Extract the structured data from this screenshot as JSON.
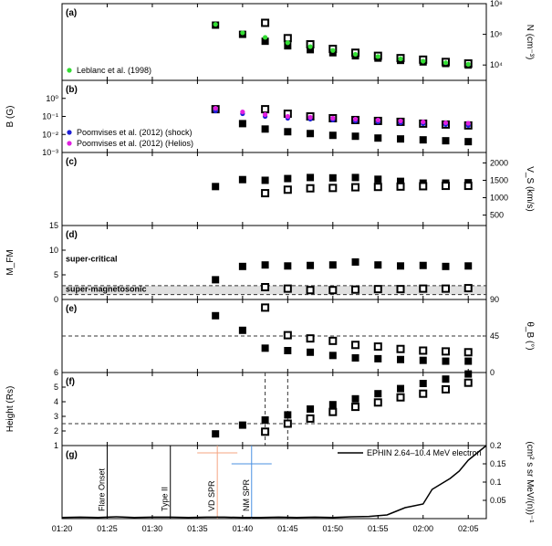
{
  "chart_data": {
    "type": "scatter",
    "x_axis": {
      "ticks": [
        "01:20",
        "01:25",
        "01:30",
        "01:35",
        "01:40",
        "01:45",
        "01:50",
        "01:55",
        "02:00",
        "02:05"
      ],
      "tick_minutes": [
        0,
        5,
        10,
        15,
        20,
        25,
        30,
        35,
        40,
        45
      ],
      "xlim": [
        0,
        47
      ]
    },
    "panels": [
      {
        "label": "(a)",
        "ylabel_right": "N (cm⁻³)",
        "scale": "log",
        "ylim_log": [
          3,
          8
        ],
        "right_ticks": [
          {
            "v": 4,
            "t": "10⁴"
          },
          {
            "v": 6,
            "t": "10⁶"
          },
          {
            "v": 8,
            "t": "10⁸"
          }
        ],
        "legend": [
          "Leblanc et al. (1998)"
        ],
        "series": [
          {
            "name": "filled",
            "style": "filled",
            "x": [
              17,
              20,
              22.5,
              25,
              27.5,
              30,
              32.5,
              35,
              37.5,
              40,
              42.5,
              45
            ],
            "y": [
              6.6,
              6.0,
              5.55,
              5.25,
              5.0,
              4.8,
              4.6,
              4.45,
              4.3,
              4.2,
              4.1,
              4.0
            ]
          },
          {
            "name": "open",
            "style": "open",
            "x": [
              22.5,
              25,
              27.5,
              30,
              32.5,
              35,
              37.5,
              40,
              42.5,
              45
            ],
            "y": [
              6.75,
              5.75,
              5.35,
              5.05,
              4.8,
              4.6,
              4.45,
              4.35,
              4.2,
              4.1
            ]
          },
          {
            "name": "Leblanc et al. (1998)",
            "style": "green",
            "x": [
              17,
              20,
              22.5,
              25,
              27.5,
              30,
              32.5,
              35,
              37.5,
              40,
              42.5,
              45
            ],
            "y": [
              6.65,
              6.1,
              5.8,
              5.45,
              5.2,
              4.95,
              4.7,
              4.55,
              4.4,
              4.25,
              4.15,
              4.05
            ]
          }
        ]
      },
      {
        "label": "(b)",
        "ylabel_left": "B (G)",
        "scale": "log",
        "ylim_log": [
          -3,
          1
        ],
        "left_ticks": [
          {
            "v": 0,
            "t": "10⁰"
          },
          {
            "v": -1,
            "t": "10⁻¹"
          },
          {
            "v": -2,
            "t": "10⁻²"
          },
          {
            "v": -3,
            "t": "10⁻³"
          }
        ],
        "legend": [
          "Poomvises et al. (2012) (shock)",
          "Poomvises et al. (2012) (Helios)"
        ],
        "series": [
          {
            "name": "filled",
            "style": "filled",
            "x": [
              17,
              20,
              22.5,
              25,
              27.5,
              30,
              32.5,
              35,
              37.5,
              40,
              42.5,
              45
            ],
            "y": [
              -0.6,
              -1.4,
              -1.7,
              -1.85,
              -1.95,
              -2.05,
              -2.1,
              -2.2,
              -2.25,
              -2.3,
              -2.35,
              -2.4
            ]
          },
          {
            "name": "open",
            "style": "open",
            "x": [
              17,
              22.5,
              25,
              27.5,
              30,
              32.5,
              35,
              37.5,
              40,
              42.5,
              45
            ],
            "y": [
              -0.6,
              -0.6,
              -0.85,
              -1.0,
              -1.1,
              -1.2,
              -1.25,
              -1.3,
              -1.4,
              -1.45,
              -1.5
            ]
          },
          {
            "name": "Poomvises et al. (2012) (shock)",
            "style": "blue",
            "x": [
              17,
              20,
              22.5,
              25,
              27.5,
              30,
              32.5,
              35,
              37.5,
              40,
              42.5,
              45
            ],
            "y": [
              -0.7,
              -0.85,
              -1.0,
              -1.1,
              -1.15,
              -1.2,
              -1.25,
              -1.3,
              -1.35,
              -1.4,
              -1.45,
              -1.5
            ]
          },
          {
            "name": "Poomvises et al. (2012) (Helios)",
            "style": "magenta",
            "x": [
              17,
              20,
              22.5,
              25,
              27.5,
              30,
              32.5,
              35,
              37.5,
              40,
              42.5,
              45
            ],
            "y": [
              -0.55,
              -0.75,
              -0.9,
              -1.0,
              -1.05,
              -1.1,
              -1.15,
              -1.2,
              -1.25,
              -1.3,
              -1.35,
              -1.38
            ]
          }
        ]
      },
      {
        "label": "(c)",
        "ylabel_right": "V_S (km/s)",
        "scale": "linear",
        "ylim": [
          200,
          2300
        ],
        "right_ticks": [
          {
            "v": 500,
            "t": "500"
          },
          {
            "v": 1000,
            "t": "1000"
          },
          {
            "v": 1500,
            "t": "1500"
          },
          {
            "v": 2000,
            "t": "2000"
          }
        ],
        "series": [
          {
            "name": "filled",
            "style": "filled",
            "x": [
              17,
              20,
              22.5,
              25,
              27.5,
              30,
              32.5,
              35,
              37.5,
              40,
              42.5,
              45
            ],
            "y": [
              1320,
              1520,
              1500,
              1550,
              1580,
              1570,
              1580,
              1530,
              1470,
              1420,
              1420,
              1430
            ]
          },
          {
            "name": "open",
            "style": "open",
            "x": [
              22.5,
              25,
              27.5,
              30,
              32.5,
              35,
              37.5,
              40,
              42.5,
              45
            ],
            "y": [
              1130,
              1230,
              1270,
              1280,
              1300,
              1310,
              1320,
              1330,
              1340,
              1340
            ]
          }
        ]
      },
      {
        "label": "(d)",
        "ylabel_left": "M_FM",
        "scale": "linear",
        "ylim": [
          0,
          15
        ],
        "left_ticks": [
          {
            "v": 0,
            "t": "0"
          },
          {
            "v": 5,
            "t": "5"
          },
          {
            "v": 10,
            "t": "10"
          },
          {
            "v": 15,
            "t": "15"
          }
        ],
        "annotations": [
          "super-critical",
          "super-magnetosonic"
        ],
        "reference_lines": [
          1,
          2.8
        ],
        "series": [
          {
            "name": "filled",
            "style": "filled",
            "x": [
              17,
              20,
              22.5,
              25,
              27.5,
              30,
              32.5,
              35,
              37.5,
              40,
              42.5,
              45
            ],
            "y": [
              4.0,
              6.7,
              7.0,
              6.8,
              6.9,
              7.0,
              7.6,
              7.0,
              6.8,
              6.9,
              6.7,
              6.8
            ]
          },
          {
            "name": "open",
            "style": "open",
            "x": [
              22.5,
              25,
              27.5,
              30,
              32.5,
              35,
              37.5,
              40,
              42.5,
              45
            ],
            "y": [
              2.5,
              2.2,
              1.9,
              1.9,
              2.0,
              2.1,
              2.1,
              2.2,
              2.2,
              2.3
            ]
          }
        ]
      },
      {
        "label": "(e)",
        "ylabel_right": "θ_B (°)",
        "scale": "linear",
        "ylim": [
          0,
          90
        ],
        "right_ticks": [
          {
            "v": 0,
            "t": "0"
          },
          {
            "v": 45,
            "t": "45"
          },
          {
            "v": 90,
            "t": "90"
          }
        ],
        "reference_lines": [
          45
        ],
        "series": [
          {
            "name": "filled",
            "style": "filled",
            "x": [
              17,
              20,
              22.5,
              25,
              27.5,
              30,
              32.5,
              35,
              37.5,
              40,
              42.5,
              45
            ],
            "y": [
              70,
              52,
              30,
              27,
              25,
              21,
              18,
              17,
              16,
              15,
              14,
              14
            ]
          },
          {
            "name": "open",
            "style": "open",
            "x": [
              22.5,
              25,
              27.5,
              30,
              32.5,
              35,
              37.5,
              40,
              42.5,
              45
            ],
            "y": [
              80,
              46,
              42,
              39,
              34,
              32,
              29,
              27,
              26,
              25
            ]
          }
        ]
      },
      {
        "label": "(f)",
        "ylabel_left": "Height (Rs)",
        "scale": "linear",
        "ylim": [
          1,
          6
        ],
        "left_ticks": [
          {
            "v": 1,
            "t": "1"
          },
          {
            "v": 2,
            "t": "2"
          },
          {
            "v": 3,
            "t": "3"
          },
          {
            "v": 4,
            "t": "4"
          },
          {
            "v": 5,
            "t": "5"
          },
          {
            "v": 6,
            "t": "6"
          }
        ],
        "reference_lines": [
          2.5
        ],
        "vertical_refs_minutes": [
          22.5,
          25
        ],
        "series": [
          {
            "name": "filled",
            "style": "filled",
            "x": [
              17,
              20,
              22.5,
              25,
              27.5,
              30,
              32.5,
              35,
              37.5,
              40,
              42.5,
              45
            ],
            "y": [
              1.8,
              2.4,
              2.75,
              3.1,
              3.5,
              3.8,
              4.2,
              4.55,
              4.9,
              5.25,
              5.55,
              5.9
            ]
          },
          {
            "name": "open",
            "style": "open",
            "x": [
              22.5,
              25,
              27.5,
              30,
              32.5,
              35,
              37.5,
              40,
              42.5,
              45
            ],
            "y": [
              1.95,
              2.5,
              2.85,
              3.3,
              3.65,
              3.95,
              4.3,
              4.55,
              4.85,
              5.3
            ]
          }
        ]
      },
      {
        "label": "(g)",
        "ylabel_right": "(cm² s sr MeV/(n))⁻¹",
        "scale": "linear",
        "ylim": [
          0,
          0.2
        ],
        "right_ticks": [
          {
            "v": 0.05,
            "t": "0.05"
          },
          {
            "v": 0.1,
            "t": "0.1"
          },
          {
            "v": 0.15,
            "t": "0.15"
          },
          {
            "v": 0.2,
            "t": "0.2"
          }
        ],
        "legend": [
          "EPHIN 2.64–10.4 MeV electron"
        ],
        "event_lines": [
          {
            "label": "Flare Onset",
            "minute": 5
          },
          {
            "label": "Type II",
            "minute": 12
          }
        ],
        "crosses": [
          {
            "label": "VD SPR",
            "minute": 17.2,
            "value": 0.18,
            "color": "#d62728",
            "line_color": "#f4a582"
          },
          {
            "label": "NM SPR",
            "minute": 21,
            "value": 0.15,
            "color": "#1f1fd6",
            "line_color": "#4a90e2"
          }
        ],
        "series": [
          {
            "name": "EPHIN 2.64–10.4 MeV electron",
            "style": "line",
            "x": [
              0,
              2,
              4,
              6,
              8,
              10,
              12,
              14,
              16,
              18,
              20,
              22,
              24,
              26,
              28,
              30,
              32,
              34,
              36,
              37,
              38,
              39,
              40,
              41,
              42,
              43,
              44,
              45,
              46,
              47
            ],
            "y": [
              0.003,
              0.004,
              0.003,
              0.005,
              0.003,
              0.004,
              0.004,
              0.003,
              0.004,
              0.004,
              0.003,
              0.003,
              0.004,
              0.003,
              0.004,
              0.003,
              0.005,
              0.006,
              0.01,
              0.02,
              0.03,
              0.035,
              0.04,
              0.08,
              0.095,
              0.11,
              0.13,
              0.16,
              0.18,
              0.2
            ]
          }
        ]
      }
    ]
  }
}
